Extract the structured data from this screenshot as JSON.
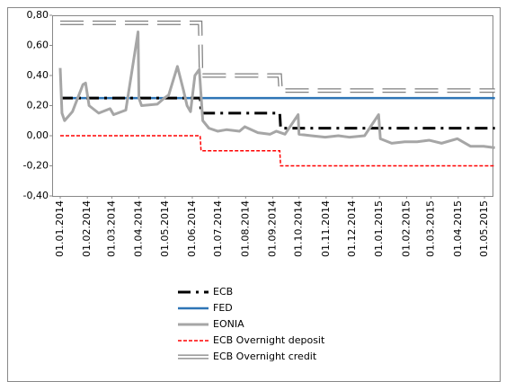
{
  "chart_data": {
    "type": "line",
    "xlim": [
      "01.01.2014",
      "01.05.2015"
    ],
    "xticks": [
      "01.01.2014",
      "01.02.2014",
      "01.03.2014",
      "01.04.2014",
      "01.05.2014",
      "01.06.2014",
      "01.07.2014",
      "01.08.2014",
      "01.09.2014",
      "01.10.2014",
      "01.11.2014",
      "01.12.2014",
      "01.01.2015",
      "01.02.2015",
      "01.03.2015",
      "01.04.2015",
      "01.05.2015"
    ],
    "ylim": [
      -0.4,
      0.8
    ],
    "yticks": [
      {
        "value": -0.4,
        "label": "-0,40"
      },
      {
        "value": -0.2,
        "label": "-0,20"
      },
      {
        "value": 0,
        "label": "0,00"
      },
      {
        "value": 0.2,
        "label": "0,20"
      },
      {
        "value": 0.4,
        "label": "0,40"
      },
      {
        "value": 0.6,
        "label": "0,60"
      },
      {
        "value": 0.8,
        "label": "0,80"
      }
    ],
    "series": [
      {
        "name": "ECB",
        "color": "#000000",
        "style": "dashdot",
        "x": [
          "01.01.2014",
          "10.06.2014",
          "11.06.2014",
          "09.09.2014",
          "10.09.2014",
          "13.05.2015"
        ],
        "values": [
          0.25,
          0.25,
          0.15,
          0.15,
          0.05,
          0.05
        ]
      },
      {
        "name": "FED",
        "color": "#2e75b6",
        "style": "solid",
        "x": [
          "01.01.2014",
          "13.05.2015"
        ],
        "values": [
          0.25,
          0.25
        ]
      },
      {
        "name": "EONIA",
        "color": "#a6a6a6",
        "style": "thick",
        "x": [
          "01.01.2014",
          "03.01.2014",
          "06.01.2014",
          "15.01.2014",
          "27.01.2014",
          "30.01.2014",
          "03.02.2014",
          "14.02.2014",
          "27.02.2014",
          "03.03.2014",
          "17.03.2014",
          "31.03.2014",
          "01.04.2014",
          "04.04.2014",
          "22.04.2014",
          "30.04.2014",
          "05.05.2014",
          "15.05.2014",
          "22.05.2014",
          "26.05.2014",
          "30.05.2014",
          "04.06.2014",
          "09.06.2014",
          "13.06.2014",
          "20.06.2014",
          "30.06.2014",
          "10.07.2014",
          "25.07.2014",
          "31.07.2014",
          "15.08.2014",
          "29.08.2014",
          "05.09.2014",
          "15.09.2014",
          "30.09.2014",
          "01.10.2014",
          "15.10.2014",
          "31.10.2014",
          "15.11.2014",
          "28.11.2014",
          "15.12.2014",
          "31.12.2014",
          "02.01.2015",
          "15.01.2015",
          "30.01.2015",
          "13.02.2015",
          "27.02.2015",
          "13.03.2015",
          "31.03.2015",
          "15.04.2015",
          "30.04.2015",
          "13.05.2015"
        ],
        "values": [
          0.45,
          0.15,
          0.1,
          0.16,
          0.34,
          0.35,
          0.2,
          0.15,
          0.18,
          0.14,
          0.17,
          0.69,
          0.25,
          0.2,
          0.21,
          0.25,
          0.27,
          0.46,
          0.3,
          0.2,
          0.16,
          0.4,
          0.44,
          0.1,
          0.05,
          0.03,
          0.04,
          0.03,
          0.06,
          0.02,
          0.01,
          0.03,
          0.01,
          0.14,
          0.01,
          0.0,
          -0.01,
          0.0,
          -0.01,
          0.0,
          0.14,
          -0.02,
          -0.05,
          -0.04,
          -0.04,
          -0.03,
          -0.05,
          -0.02,
          -0.07,
          -0.07,
          -0.08
        ]
      },
      {
        "name": "ECB Overnight deposit",
        "color": "#ff0000",
        "style": "dashed",
        "x": [
          "01.01.2014",
          "10.06.2014",
          "11.06.2014",
          "09.09.2014",
          "10.09.2014",
          "13.05.2015"
        ],
        "values": [
          0,
          0,
          -0.1,
          -0.1,
          -0.2,
          -0.2
        ]
      },
      {
        "name": "ECB Overnight credit",
        "color": "#7f7f7f",
        "style": "double",
        "x": [
          "01.01.2014",
          "10.06.2014",
          "11.06.2014",
          "09.09.2014",
          "10.09.2014",
          "13.05.2015"
        ],
        "values": [
          0.75,
          0.75,
          0.4,
          0.4,
          0.3,
          0.3
        ]
      }
    ]
  }
}
